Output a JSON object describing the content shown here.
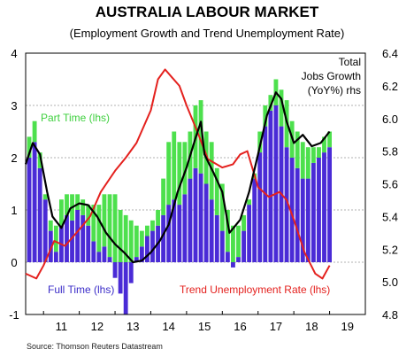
{
  "chart_data": {
    "type": "bar+line",
    "title": "AUSTRALIA LABOUR MARKET",
    "subtitle": "(Employment Growth and Trend Unemployment Rate)",
    "source": "Source: Thomson Reuters Datastream",
    "x_ticks": [
      "11",
      "12",
      "13",
      "14",
      "15",
      "16",
      "17",
      "18",
      "19"
    ],
    "x_range": [
      2010.5,
      2020.0
    ],
    "y_left": {
      "ticks": [
        "-1",
        "0",
        "1",
        "2",
        "3",
        "4"
      ],
      "range": [
        -1,
        4
      ]
    },
    "y_right": {
      "ticks": [
        "4.8",
        "5.0",
        "5.2",
        "5.4",
        "5.6",
        "5.8",
        "6.0",
        "6.2",
        "6.4"
      ],
      "range": [
        4.8,
        6.4
      ]
    },
    "grid": "horizontal dotted",
    "colors": {
      "full_time": "#4a2bd6",
      "part_time": "#4de04d",
      "total": "#000000",
      "unemployment": "#e4211e"
    },
    "annotations": {
      "part_time": "Part Time (lhs)",
      "full_time": "Full Time (lhs)",
      "unemployment": "Trend Unemployment Rate (lhs)",
      "total_line1": "Total",
      "total_line2": "Jobs Growth",
      "total_line3": "(YoY%) rhs"
    },
    "series": [
      {
        "name": "Full Time",
        "axis": "left",
        "kind": "bar",
        "x": [
          2010.6,
          2010.75,
          2010.9,
          2011.05,
          2011.2,
          2011.35,
          2011.5,
          2011.65,
          2011.8,
          2011.95,
          2012.1,
          2012.25,
          2012.4,
          2012.55,
          2012.7,
          2012.85,
          2013.0,
          2013.15,
          2013.3,
          2013.45,
          2013.6,
          2013.75,
          2013.9,
          2014.05,
          2014.2,
          2014.35,
          2014.5,
          2014.65,
          2014.8,
          2014.95,
          2015.1,
          2015.25,
          2015.4,
          2015.55,
          2015.7,
          2015.85,
          2016.0,
          2016.15,
          2016.3,
          2016.45,
          2016.6,
          2016.75,
          2016.9,
          2017.05,
          2017.2,
          2017.35,
          2017.5,
          2017.65,
          2017.8,
          2017.95,
          2018.1,
          2018.25,
          2018.4,
          2018.55,
          2018.7,
          2018.85,
          2019.0
        ],
        "values": [
          2.0,
          2.3,
          1.8,
          1.2,
          0.6,
          0.2,
          0.7,
          0.9,
          0.8,
          1.0,
          0.9,
          0.7,
          0.4,
          0.2,
          0.3,
          0.1,
          -0.3,
          -0.6,
          -1.0,
          -0.4,
          0.1,
          0.3,
          0.5,
          0.6,
          0.7,
          0.9,
          1.1,
          1.2,
          1.1,
          1.3,
          1.6,
          1.8,
          1.7,
          1.5,
          1.2,
          0.9,
          0.6,
          0.2,
          -0.1,
          0.1,
          0.6,
          1.1,
          1.6,
          2.1,
          2.6,
          2.9,
          3.0,
          2.6,
          2.2,
          2.0,
          1.8,
          1.6,
          1.6,
          1.9,
          2.0,
          2.1,
          2.2
        ]
      },
      {
        "name": "Part Time",
        "axis": "left",
        "kind": "bar",
        "x": [
          2010.6,
          2010.75,
          2010.9,
          2011.05,
          2011.2,
          2011.35,
          2011.5,
          2011.65,
          2011.8,
          2011.95,
          2012.1,
          2012.25,
          2012.4,
          2012.55,
          2012.7,
          2012.85,
          2013.0,
          2013.15,
          2013.3,
          2013.45,
          2013.6,
          2013.75,
          2013.9,
          2014.05,
          2014.2,
          2014.35,
          2014.5,
          2014.65,
          2014.8,
          2014.95,
          2015.1,
          2015.25,
          2015.4,
          2015.55,
          2015.7,
          2015.85,
          2016.0,
          2016.15,
          2016.3,
          2016.45,
          2016.6,
          2016.75,
          2016.9,
          2017.05,
          2017.2,
          2017.35,
          2017.5,
          2017.65,
          2017.8,
          2017.95,
          2018.1,
          2018.25,
          2018.4,
          2018.55,
          2018.7,
          2018.85,
          2019.0
        ],
        "values": [
          0.4,
          0.4,
          0.3,
          0.1,
          0.2,
          0.5,
          0.5,
          0.4,
          0.5,
          0.3,
          0.3,
          0.4,
          0.7,
          0.9,
          1.0,
          1.2,
          1.3,
          1.0,
          0.9,
          0.8,
          0.6,
          0.3,
          0.2,
          0.2,
          0.3,
          0.7,
          1.2,
          1.3,
          1.2,
          1.0,
          0.9,
          1.2,
          1.4,
          1.0,
          1.1,
          0.9,
          0.9,
          0.8,
          0.7,
          0.6,
          0.3,
          0.1,
          0.1,
          0.4,
          0.4,
          0.3,
          0.5,
          0.7,
          0.9,
          0.7,
          0.7,
          0.7,
          0.6,
          0.3,
          0.2,
          0.3,
          0.3
        ]
      },
      {
        "name": "Total",
        "axis": "right",
        "kind": "line",
        "x": [
          2010.5,
          2010.7,
          2010.9,
          2011.1,
          2011.25,
          2011.5,
          2011.75,
          2012.0,
          2012.25,
          2012.5,
          2012.75,
          2013.0,
          2013.25,
          2013.5,
          2013.75,
          2014.0,
          2014.25,
          2014.5,
          2014.75,
          2015.0,
          2015.25,
          2015.4,
          2015.5,
          2015.75,
          2016.0,
          2016.2,
          2016.5,
          2016.75,
          2017.0,
          2017.25,
          2017.5,
          2017.65,
          2017.8,
          2018.0,
          2018.25,
          2018.5,
          2018.75,
          2019.0
        ],
        "values": [
          5.72,
          5.85,
          5.78,
          5.55,
          5.4,
          5.33,
          5.45,
          5.48,
          5.47,
          5.4,
          5.3,
          5.23,
          5.18,
          5.12,
          5.13,
          5.18,
          5.25,
          5.35,
          5.55,
          5.7,
          5.88,
          5.98,
          5.78,
          5.67,
          5.55,
          5.3,
          5.38,
          5.55,
          5.78,
          6.02,
          6.16,
          6.12,
          5.98,
          5.85,
          5.9,
          5.83,
          5.85,
          5.92
        ]
      },
      {
        "name": "Trend Unemployment Rate",
        "axis": "left",
        "kind": "line",
        "x": [
          2010.5,
          2010.8,
          2011.0,
          2011.3,
          2011.6,
          2012.0,
          2012.3,
          2012.6,
          2013.0,
          2013.3,
          2013.6,
          2014.0,
          2014.2,
          2014.4,
          2014.6,
          2014.8,
          2015.0,
          2015.3,
          2015.6,
          2016.0,
          2016.3,
          2016.5,
          2016.7,
          2017.0,
          2017.3,
          2017.6,
          2017.8,
          2018.0,
          2018.3,
          2018.6,
          2018.8,
          2019.0
        ],
        "values": [
          5.05,
          5.02,
          5.1,
          5.25,
          5.22,
          5.32,
          5.4,
          5.55,
          5.68,
          5.76,
          5.85,
          6.05,
          6.24,
          6.3,
          6.25,
          6.2,
          6.08,
          5.92,
          5.75,
          5.7,
          5.72,
          5.78,
          5.8,
          5.58,
          5.52,
          5.55,
          5.5,
          5.38,
          5.18,
          5.05,
          5.02,
          5.1
        ]
      }
    ]
  }
}
